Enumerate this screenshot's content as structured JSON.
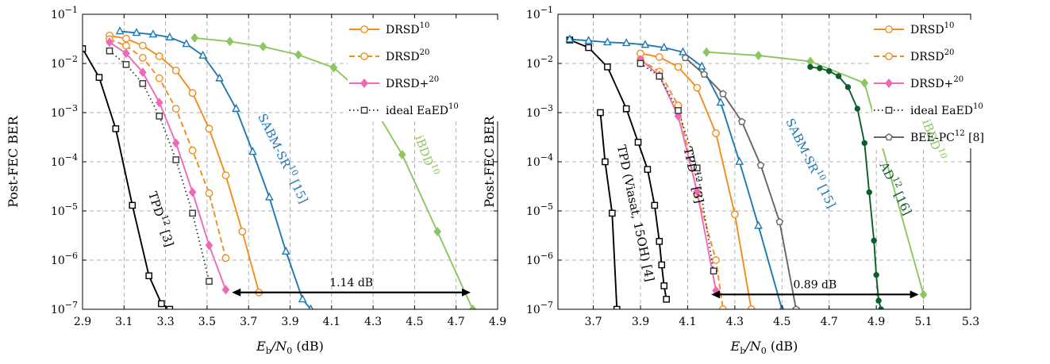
{
  "chart_data": [
    {
      "type": "line",
      "xlabel": "Eb/N0 (dB)",
      "ylabel": "Post-FEC BER",
      "xlim": [
        2.9,
        4.9
      ],
      "ylim": [
        1e-07,
        0.1
      ],
      "yscale": "log",
      "grid": true,
      "legend_position": "top-right",
      "x_ticks": [
        2.9,
        3.1,
        3.3,
        3.5,
        3.7,
        3.9,
        4.1,
        4.3,
        4.5,
        4.7,
        4.9
      ],
      "series": [
        {
          "name": "DRSD10",
          "color": "#f28c1e",
          "dash": "solid",
          "marker": "circle",
          "x": [
            3.03,
            3.11,
            3.19,
            3.27,
            3.35,
            3.43,
            3.51,
            3.59,
            3.67,
            3.75
          ],
          "y": [
            0.037,
            0.032,
            0.023,
            0.014,
            0.0072,
            0.0025,
            0.00047,
            5.3e-05,
            3.8e-06,
            2.2e-07
          ]
        },
        {
          "name": "DRSD20",
          "color": "#f28c1e",
          "dash": "dashed",
          "marker": "circle",
          "x": [
            3.03,
            3.11,
            3.19,
            3.27,
            3.35,
            3.43,
            3.51,
            3.59
          ],
          "y": [
            0.031,
            0.023,
            0.013,
            0.005,
            0.0012,
            0.00017,
            2.3e-05,
            1.1e-06
          ]
        },
        {
          "name": "DRSD+20",
          "color": "#ee6ab7",
          "dash": "solid",
          "marker": "diamond",
          "x": [
            3.03,
            3.11,
            3.19,
            3.27,
            3.35,
            3.43,
            3.51,
            3.59
          ],
          "y": [
            0.027,
            0.016,
            0.0066,
            0.0016,
            0.00024,
            2.4e-05,
            2e-06,
            2.5e-07
          ]
        },
        {
          "name": "ideal EaED10",
          "color": "#333333",
          "dash": "dotted",
          "marker": "square",
          "x": [
            3.03,
            3.11,
            3.19,
            3.27,
            3.35,
            3.43,
            3.51
          ],
          "y": [
            0.018,
            0.0095,
            0.0039,
            0.00085,
            0.00011,
            9e-06,
            3.7e-07
          ]
        },
        {
          "name": "",
          "color": "#000000",
          "dash": "solid",
          "marker": "square",
          "x": [
            2.9,
            2.98,
            3.06,
            3.14,
            3.22,
            3.28,
            3.32
          ],
          "y": [
            0.02,
            0.0052,
            0.00047,
            1.3e-05,
            4.8e-07,
            1.3e-07,
            1e-07
          ]
        },
        {
          "name": "",
          "color": "#1f78b4",
          "dash": "solid",
          "marker": "triangle",
          "x": [
            3.08,
            3.16,
            3.24,
            3.32,
            3.4,
            3.48,
            3.56,
            3.64,
            3.72,
            3.8,
            3.88,
            3.96,
            4.0
          ],
          "y": [
            0.045,
            0.042,
            0.039,
            0.034,
            0.025,
            0.0145,
            0.005,
            0.0012,
            0.00016,
            1.9e-05,
            1.5e-06,
            1.6e-07,
            1e-07
          ]
        },
        {
          "name": "",
          "color": "#8cc65e",
          "dash": "solid",
          "marker": "diamond",
          "x": [
            3.44,
            3.61,
            3.77,
            3.94,
            4.11,
            4.28,
            4.44,
            4.61,
            4.78
          ],
          "y": [
            0.033,
            0.028,
            0.022,
            0.015,
            0.0082,
            0.0019,
            0.00014,
            3.8e-06,
            1e-07
          ]
        }
      ],
      "annotations": [
        {
          "text": "TPD12 [3]",
          "color": "#000000"
        },
        {
          "text": "SABM-SR10 [15]",
          "color": "#1f78b4"
        },
        {
          "text": "iBDD10",
          "color": "#8cc65e"
        },
        {
          "text": "1.14 dB",
          "from_x": 3.62,
          "to_x": 4.77,
          "y": 2.2e-07
        }
      ]
    },
    {
      "type": "line",
      "xlabel": "Eb/N0 (dB)",
      "ylabel": "Post-FEC BER",
      "xlim": [
        3.55,
        5.3
      ],
      "ylim": [
        1e-07,
        0.1
      ],
      "yscale": "log",
      "grid": true,
      "legend_position": "top-right",
      "x_ticks": [
        3.7,
        3.9,
        4.1,
        4.3,
        4.5,
        4.7,
        4.9,
        5.1,
        5.3
      ],
      "series": [
        {
          "name": "DRSD10",
          "color": "#f28c1e",
          "dash": "solid",
          "marker": "circle",
          "x": [
            3.9,
            3.98,
            4.06,
            4.14,
            4.22,
            4.3,
            4.37
          ],
          "y": [
            0.016,
            0.0135,
            0.0085,
            0.0032,
            0.00038,
            8.5e-06,
            1e-07
          ]
        },
        {
          "name": "DRSD20",
          "color": "#f28c1e",
          "dash": "dashed",
          "marker": "circle",
          "x": [
            3.9,
            3.98,
            4.06,
            4.14,
            4.22,
            4.25
          ],
          "y": [
            0.012,
            0.0068,
            0.0014,
            2.3e-05,
            1e-06,
            1e-07
          ]
        },
        {
          "name": "DRSD+20",
          "color": "#ee6ab7",
          "dash": "solid",
          "marker": "diamond",
          "x": [
            3.9,
            3.98,
            4.06,
            4.14,
            4.22
          ],
          "y": [
            0.012,
            0.0057,
            0.00085,
            2.5e-05,
            2.4e-07
          ]
        },
        {
          "name": "ideal EaED10",
          "color": "#333333",
          "dash": "dotted",
          "marker": "square",
          "x": [
            3.9,
            3.98,
            4.06,
            4.14,
            4.21
          ],
          "y": [
            0.01,
            0.0055,
            0.0011,
            7.5e-05,
            6e-07
          ]
        },
        {
          "name": "BEE-PC12 [8]",
          "color": "#666666",
          "dash": "solid",
          "marker": "pentagon",
          "x": [
            4.09,
            4.17,
            4.25,
            4.33,
            4.41,
            4.49,
            4.56
          ],
          "y": [
            0.013,
            0.006,
            0.0024,
            0.00065,
            8.5e-05,
            6e-06,
            1e-07
          ]
        },
        {
          "name": "",
          "color": "#000000",
          "dash": "solid",
          "marker": "square",
          "x": [
            3.73,
            3.75,
            3.78,
            3.8
          ],
          "y": [
            0.001,
            0.0001,
            9e-06,
            1e-07
          ]
        },
        {
          "name": "",
          "color": "#000000",
          "dash": "solid",
          "marker": "square",
          "x": [
            3.6,
            3.68,
            3.76,
            3.84,
            3.89,
            3.93,
            3.96,
            3.98,
            3.99,
            4.0,
            4.01
          ],
          "y": [
            0.03,
            0.021,
            0.0085,
            0.0012,
            0.00025,
            7e-05,
            1.3e-05,
            2.4e-06,
            8e-07,
            3e-07,
            1.6e-07
          ]
        },
        {
          "name": "",
          "color": "#1f78b4",
          "dash": "solid",
          "marker": "triangle",
          "x": [
            3.6,
            3.68,
            3.76,
            3.84,
            3.92,
            4.0,
            4.08,
            4.16,
            4.24,
            4.32,
            4.4,
            4.5
          ],
          "y": [
            0.031,
            0.029,
            0.027,
            0.026,
            0.024,
            0.021,
            0.017,
            0.0087,
            0.0016,
            0.0001,
            5e-06,
            1e-07
          ]
        },
        {
          "name": "",
          "color": "#8cc65e",
          "dash": "solid",
          "marker": "diamond",
          "x": [
            4.18,
            4.4,
            4.62,
            4.85,
            5.1
          ],
          "y": [
            0.017,
            0.0145,
            0.011,
            0.004,
            2e-07
          ]
        },
        {
          "name": "",
          "color": "#0b5e2a",
          "dash": "solid",
          "marker": "dot",
          "x": [
            4.62,
            4.66,
            4.7,
            4.74,
            4.78,
            4.82,
            4.85,
            4.87,
            4.89,
            4.9,
            4.91,
            4.92
          ],
          "y": [
            0.0085,
            0.008,
            0.007,
            0.0055,
            0.0033,
            0.0012,
            0.00024,
            2.4e-05,
            2.5e-06,
            5e-07,
            1.5e-07,
            1e-07
          ]
        }
      ],
      "annotations": [
        {
          "text": "TPD (Viasat, 15OH) [4]",
          "color": "#000000"
        },
        {
          "text": "TPD12 [3]",
          "color": "#000000"
        },
        {
          "text": "SABM-SR10 [15]",
          "color": "#1f78b4"
        },
        {
          "text": "AD12 [16]",
          "color": "#0b5e2a"
        },
        {
          "text": "iBDD10",
          "color": "#8cc65e"
        },
        {
          "text": "0.89 dB",
          "from_x": 4.2,
          "to_x": 5.08,
          "y": 2e-07
        }
      ]
    }
  ]
}
